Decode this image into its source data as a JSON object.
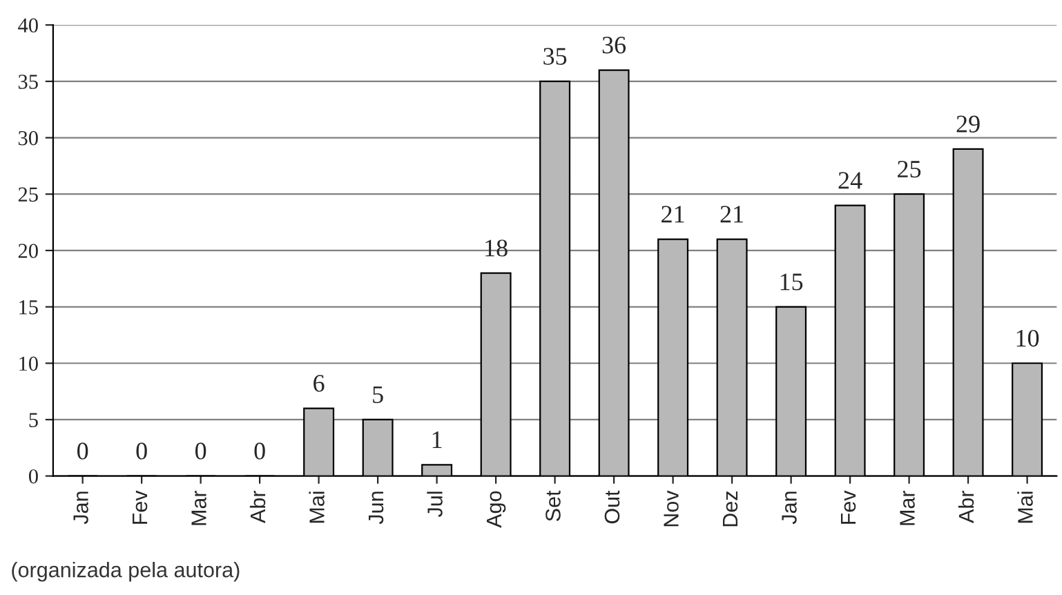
{
  "chart_data": {
    "type": "bar",
    "categories": [
      "Jan",
      "Fev",
      "Mar",
      "Abr",
      "Mai",
      "Jun",
      "Jul",
      "Ago",
      "Set",
      "Out",
      "Nov",
      "Dez",
      "Jan",
      "Fev",
      "Mar",
      "Abr",
      "Mai"
    ],
    "values": [
      0,
      0,
      0,
      0,
      6,
      5,
      1,
      18,
      35,
      36,
      21,
      21,
      15,
      24,
      25,
      29,
      10
    ],
    "color": "#b8b8b8",
    "ylim": [
      0,
      40
    ],
    "yticks": [
      0,
      5,
      10,
      15,
      20,
      25,
      30,
      35,
      40
    ],
    "grid": "y",
    "data_labels": true,
    "legend": false,
    "annotations": [
      "(organizada pela autora)"
    ]
  }
}
